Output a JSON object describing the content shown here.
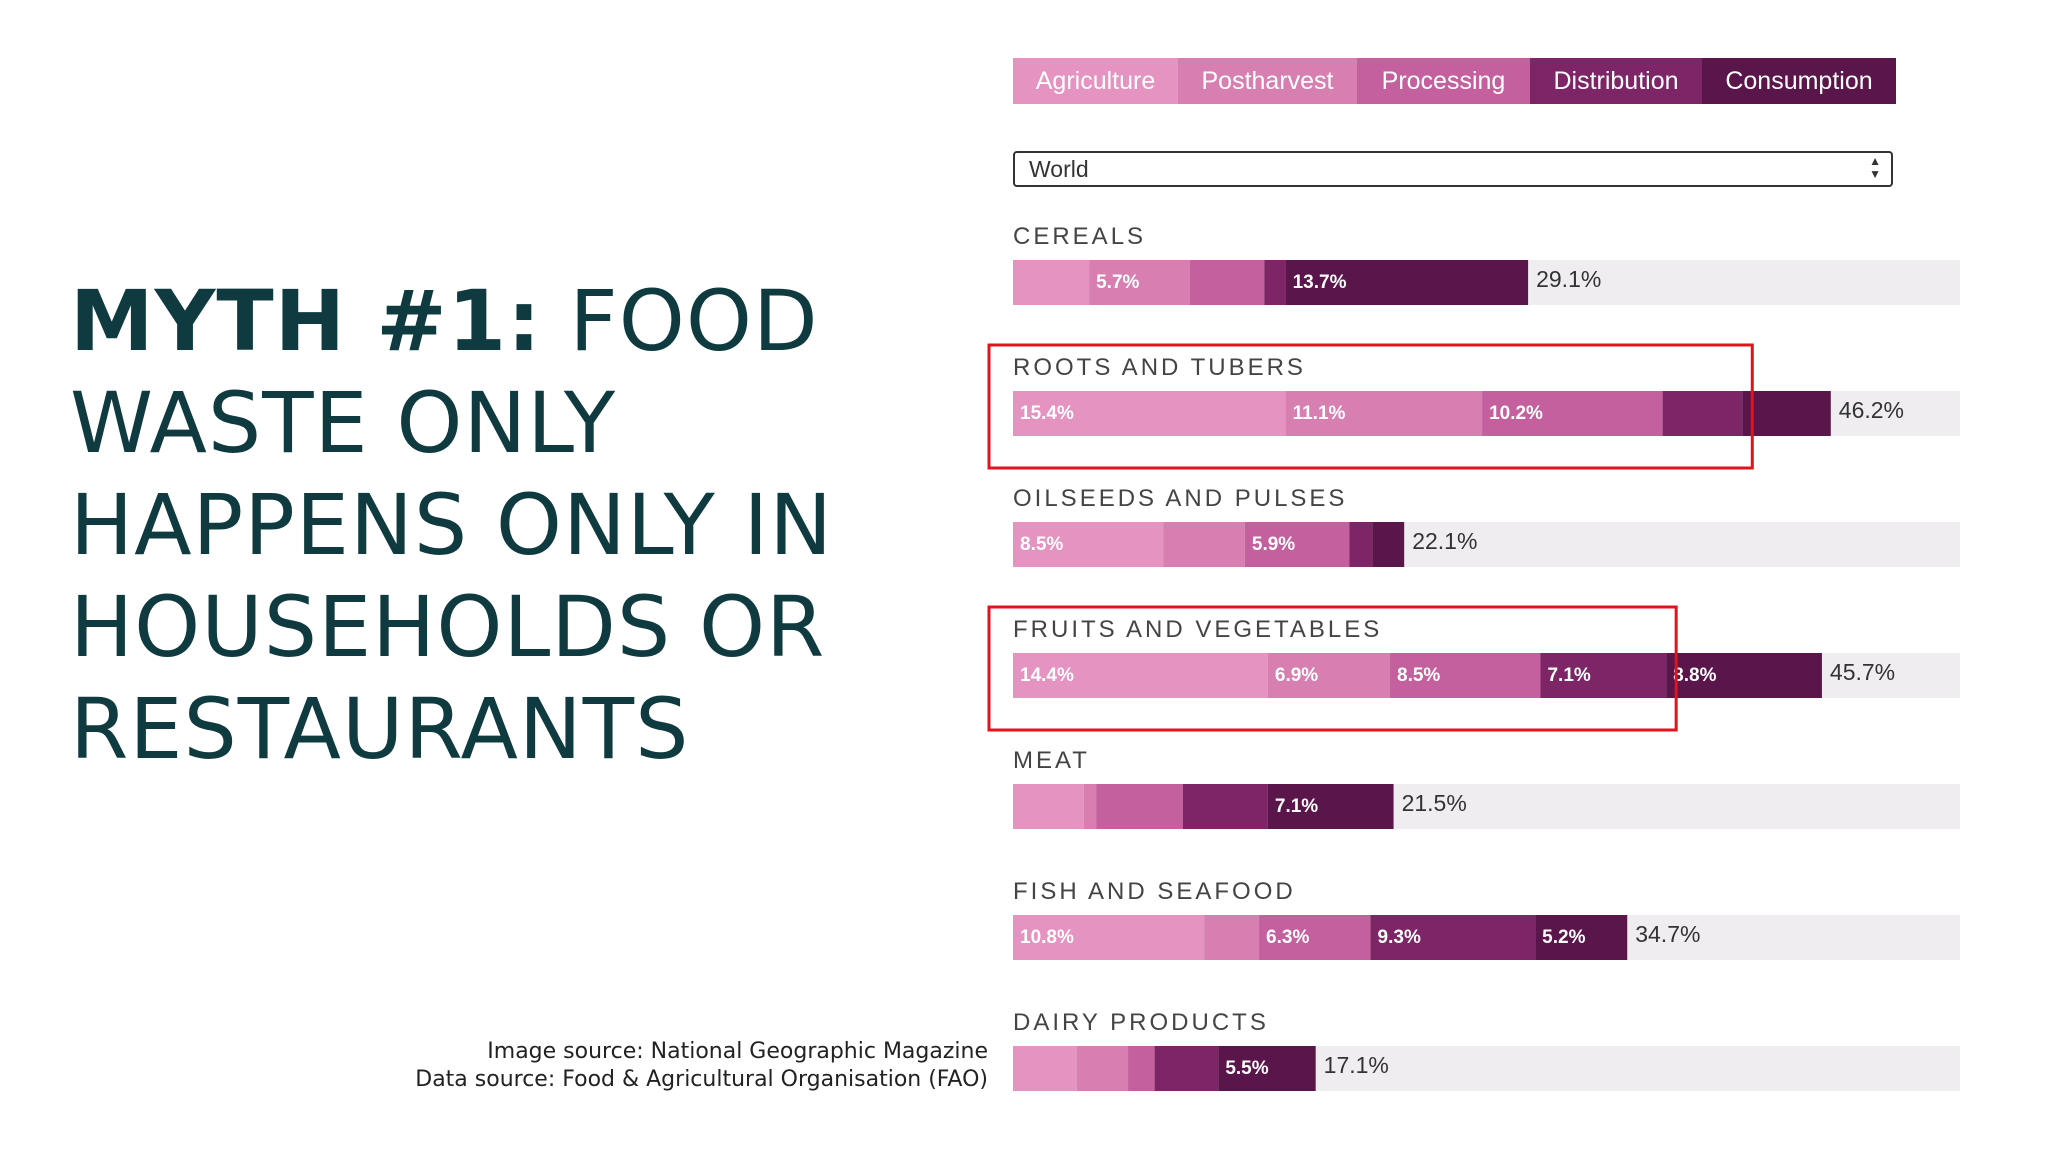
{
  "headline": {
    "bold": "MYTH #1:",
    "rest": " FOOD WASTE ONLY HAPPENS ONLY IN HOUSEHOLDS OR RESTAURANTS"
  },
  "sources": {
    "image": "Image source: National Geographic Magazine",
    "data": "Data source: Food & Agricultural Organisation (FAO)"
  },
  "tabs": [
    {
      "label": "Agriculture",
      "color": "#e593c0"
    },
    {
      "label": "Postharvest",
      "color": "#d77fb1"
    },
    {
      "label": "Processing",
      "color": "#c4609e"
    },
    {
      "label": "Distribution",
      "color": "#7d2566"
    },
    {
      "label": "Consumption",
      "color": "#5a154a"
    }
  ],
  "region_select": {
    "value": "World"
  },
  "colors": {
    "track": "#efedf0",
    "highlight": "#e0141e",
    "stages": [
      "#e593c0",
      "#d77fb1",
      "#c4609e",
      "#7d2566",
      "#5a154a"
    ]
  },
  "chart_data": {
    "type": "bar",
    "orientation": "horizontal-stacked",
    "stages": [
      "Agriculture",
      "Postharvest",
      "Processing",
      "Distribution",
      "Consumption"
    ],
    "unit": "%",
    "xlim": [
      0,
      53.5
    ],
    "categories": [
      {
        "name": "CEREALS",
        "segments": [
          {
            "value": 4.3,
            "label": ""
          },
          {
            "value": 5.7,
            "label": "5.7%"
          },
          {
            "value": 4.2,
            "label": ""
          },
          {
            "value": 1.2,
            "label": ""
          },
          {
            "value": 13.7,
            "label": "13.7%"
          }
        ],
        "total": "29.1%"
      },
      {
        "name": "ROOTS AND TUBERS",
        "highlighted": true,
        "segments": [
          {
            "value": 15.4,
            "label": "15.4%"
          },
          {
            "value": 11.1,
            "label": "11.1%"
          },
          {
            "value": 10.2,
            "label": "10.2%"
          },
          {
            "value": 4.5,
            "label": ""
          },
          {
            "value": 5.0,
            "label": ""
          }
        ],
        "total": "46.2%"
      },
      {
        "name": "OILSEEDS AND PULSES",
        "segments": [
          {
            "value": 8.5,
            "label": "8.5%"
          },
          {
            "value": 4.6,
            "label": ""
          },
          {
            "value": 5.9,
            "label": "5.9%"
          },
          {
            "value": 1.3,
            "label": ""
          },
          {
            "value": 1.8,
            "label": ""
          }
        ],
        "total": "22.1%"
      },
      {
        "name": "FRUITS AND VEGETABLES",
        "highlighted": true,
        "segments": [
          {
            "value": 14.4,
            "label": "14.4%"
          },
          {
            "value": 6.9,
            "label": "6.9%"
          },
          {
            "value": 8.5,
            "label": "8.5%"
          },
          {
            "value": 7.1,
            "label": "7.1%"
          },
          {
            "value": 8.8,
            "label": "8.8%"
          }
        ],
        "total": "45.7%"
      },
      {
        "name": "MEAT",
        "segments": [
          {
            "value": 4.0,
            "label": ""
          },
          {
            "value": 0.7,
            "label": ""
          },
          {
            "value": 4.9,
            "label": ""
          },
          {
            "value": 4.8,
            "label": ""
          },
          {
            "value": 7.1,
            "label": "7.1%"
          }
        ],
        "total": "21.5%"
      },
      {
        "name": "FISH AND SEAFOOD",
        "segments": [
          {
            "value": 10.8,
            "label": "10.8%"
          },
          {
            "value": 3.1,
            "label": ""
          },
          {
            "value": 6.3,
            "label": "6.3%"
          },
          {
            "value": 9.3,
            "label": "9.3%"
          },
          {
            "value": 5.2,
            "label": "5.2%"
          }
        ],
        "total": "34.7%"
      },
      {
        "name": "DAIRY PRODUCTS",
        "segments": [
          {
            "value": 3.6,
            "label": ""
          },
          {
            "value": 2.9,
            "label": ""
          },
          {
            "value": 1.5,
            "label": ""
          },
          {
            "value": 3.6,
            "label": ""
          },
          {
            "value": 5.5,
            "label": "5.5%"
          }
        ],
        "total": "17.1%"
      }
    ]
  }
}
